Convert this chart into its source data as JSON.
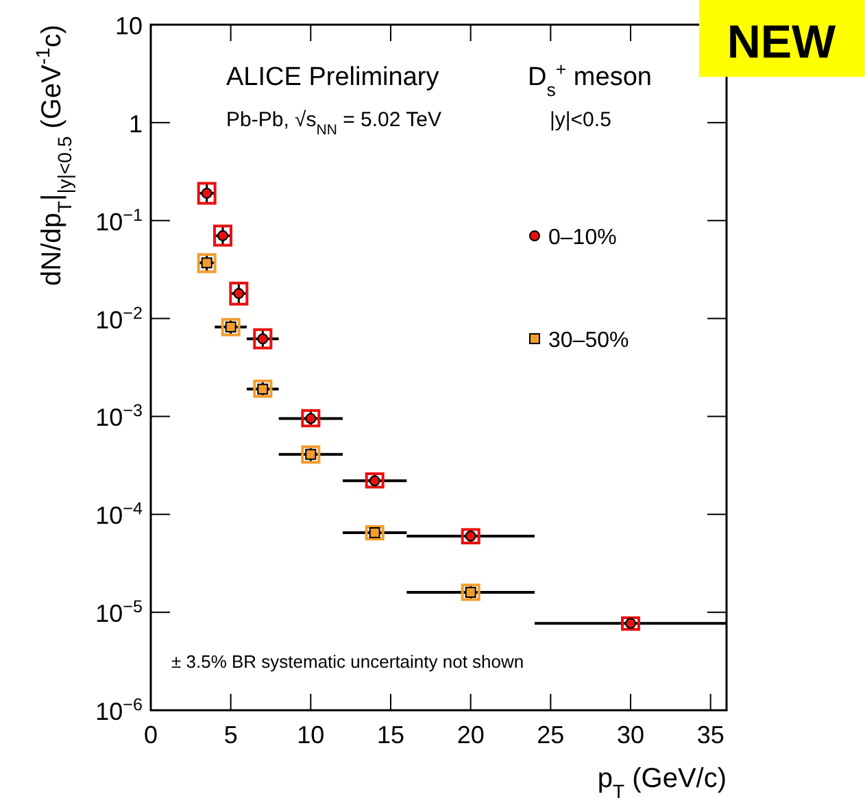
{
  "chart_data": {
    "type": "scatter",
    "xlabel": "p$_{T}$ (GeV/c)",
    "ylabel": "dN/dp$_{T}$|$_{|y|<0.5}$ (GeV$^{-1}$c)",
    "xlim": [
      0,
      36
    ],
    "ylim": [
      1e-06,
      10
    ],
    "log": "y",
    "xticks": [
      0,
      5,
      10,
      15,
      20,
      25,
      30,
      35
    ],
    "yticks": [
      {
        "value": 1e-06,
        "label": "10$^{−6}$"
      },
      {
        "value": 1e-05,
        "label": "10$^{−5}$"
      },
      {
        "value": 0.0001,
        "label": "10$^{−4}$"
      },
      {
        "value": 0.001,
        "label": "10$^{−3}$"
      },
      {
        "value": 0.01,
        "label": "10$^{−2}$"
      },
      {
        "value": 0.1,
        "label": "10$^{−1}$"
      },
      1,
      10
    ],
    "grid": false,
    "legend": "top right",
    "series": [
      {
        "name": "0–10%",
        "color": "#e8100f",
        "marker": "circle",
        "x": [
          3.5,
          4.5,
          5.5,
          7,
          10,
          14,
          20,
          30
        ],
        "values": [
          0.19,
          0.07,
          0.018,
          0.0062,
          0.00095,
          0.00022,
          6e-05,
          7.7e-06
        ],
        "xerrors": [
          [
            3,
            4
          ],
          [
            4,
            5
          ],
          [
            5,
            6
          ],
          [
            6,
            8
          ],
          [
            8,
            12
          ],
          [
            12,
            16
          ],
          [
            16,
            24
          ],
          [
            24,
            36
          ]
        ],
        "errors": [
          [
            0.15,
            0.24
          ],
          [
            0.056,
            0.088
          ],
          [
            0.014,
            0.023
          ],
          [
            0.005,
            0.0077
          ],
          [
            0.0008,
            0.00115
          ],
          [
            0.00019,
            0.00026
          ],
          [
            5.1e-05,
            7e-05
          ],
          [
            6.7e-06,
            8.8e-06
          ]
        ]
      },
      {
        "name": "30–50%",
        "color": "#f39c2e",
        "marker": "square",
        "x": [
          3.5,
          5,
          7,
          10,
          14,
          20
        ],
        "values": [
          0.037,
          0.0082,
          0.0019,
          0.00041,
          6.5e-05,
          1.6e-05
        ],
        "xerrors": [
          [
            3,
            4
          ],
          [
            4,
            6
          ],
          [
            6,
            8
          ],
          [
            8,
            12
          ],
          [
            12,
            16
          ],
          [
            16,
            24
          ]
        ],
        "errors": [
          [
            0.03,
            0.045
          ],
          [
            0.0068,
            0.0098
          ],
          [
            0.0016,
            0.0023
          ],
          [
            0.00034,
            0.00049
          ],
          [
            5.6e-05,
            7.5e-05
          ],
          [
            1.35e-05,
            1.9e-05
          ]
        ]
      }
    ],
    "annotations": [
      "ALICE Preliminary",
      "D$_{s}$$^{+}$ meson",
      "Pb-Pb, √s$_{NN}$ = 5.02 TeV",
      "|y|<0.5",
      "± 3.5% BR systematic uncertainty not shown",
      "NEW"
    ]
  }
}
